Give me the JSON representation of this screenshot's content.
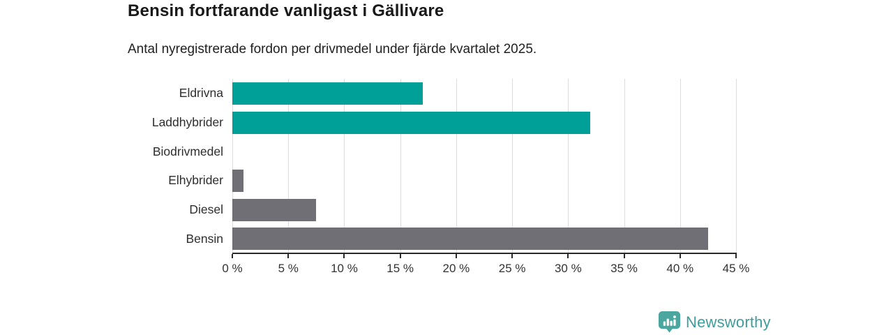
{
  "header": {
    "title": "Bensin fortfarande vanligast i Gällivare",
    "subtitle": "Antal nyregistrerade fordon per drivmedel under fjärde kvartalet 2025."
  },
  "chart_data": {
    "type": "bar",
    "orientation": "horizontal",
    "title": "Bensin fortfarande vanligast i Gällivare",
    "subtitle": "Antal nyregistrerade fordon per drivmedel under fjärde kvartalet 2025.",
    "categories": [
      "Eldrivna",
      "Laddhybrider",
      "Biodrivmedel",
      "Elhybrider",
      "Diesel",
      "Bensin"
    ],
    "values": [
      17,
      32,
      0,
      1,
      7.5,
      42.5
    ],
    "unit": "%",
    "bar_colors": [
      "#00a099",
      "#00a099",
      "#6f6f75",
      "#6f6f75",
      "#6f6f75",
      "#6f6f75"
    ],
    "xlim": [
      0,
      45
    ],
    "x_ticks": [
      0,
      5,
      10,
      15,
      20,
      25,
      30,
      35,
      40,
      45
    ],
    "x_tick_labels": [
      "0 %",
      "5 %",
      "10 %",
      "15 %",
      "20 %",
      "25 %",
      "30 %",
      "35 %",
      "40 %",
      "45 %"
    ],
    "grid": true,
    "legend": "none",
    "colors": {
      "teal": "#00a099",
      "gray": "#6f6f75",
      "gridline": "#dddddd",
      "axis": "#2a2a2a",
      "text": "#2e2e2e"
    }
  },
  "footer": {
    "brand": "Newsworthy",
    "brand_text_color": "#3f9d9c",
    "brand_badge_color": "#4ba6a0",
    "logo_icon": "newsworthy-chart-badge-icon"
  }
}
